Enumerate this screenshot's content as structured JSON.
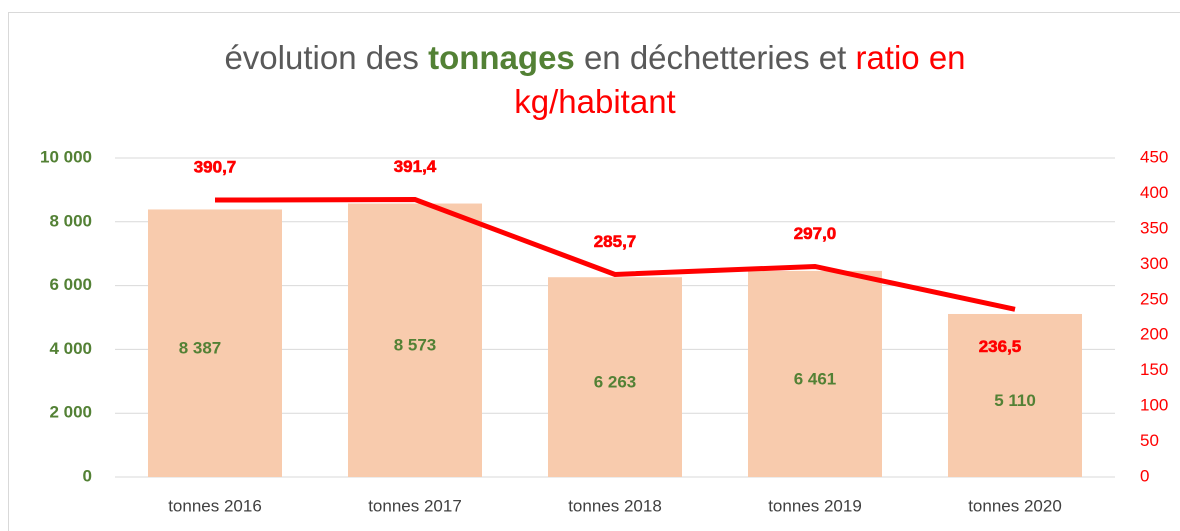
{
  "chart_data": {
    "type": "bar_line",
    "title": [
      "évolution des ",
      "tonnages",
      " en déchetteries et ",
      "ratio en",
      "kg/habitant"
    ],
    "categories": [
      "tonnes 2016",
      "tonnes 2017",
      "tonnes 2018",
      "tonnes 2019",
      "tonnes 2020"
    ],
    "series": [
      {
        "name": "tonnages",
        "type": "bar",
        "color": "#f8cbad",
        "label_color": "#538135",
        "values": [
          8387,
          8573,
          6263,
          6461,
          5110
        ],
        "value_labels": [
          "8 387",
          "8 573",
          "6 263",
          "6 461",
          "5 110"
        ]
      },
      {
        "name": "ratio",
        "type": "line",
        "axis": "y2",
        "color": "#ff0000",
        "values": [
          390.7,
          391.4,
          285.7,
          297.0,
          236.5
        ],
        "value_labels": [
          "390,7",
          "391,4",
          "285,7",
          "297,0",
          "236,5"
        ]
      }
    ],
    "ylim": [
      0,
      10000
    ],
    "yticks": [
      0,
      {
        "value": 2000,
        "label": "2 000"
      },
      {
        "value": 4000,
        "label": "4 000"
      },
      {
        "value": 6000,
        "label": "6 000"
      },
      {
        "value": 8000,
        "label": "8 000"
      },
      {
        "value": 10000,
        "label": "10 000"
      }
    ],
    "y2lim": [
      0,
      450
    ],
    "y2ticks": [
      0,
      50,
      100,
      150,
      200,
      250,
      300,
      350,
      400,
      450
    ],
    "grid": true
  }
}
